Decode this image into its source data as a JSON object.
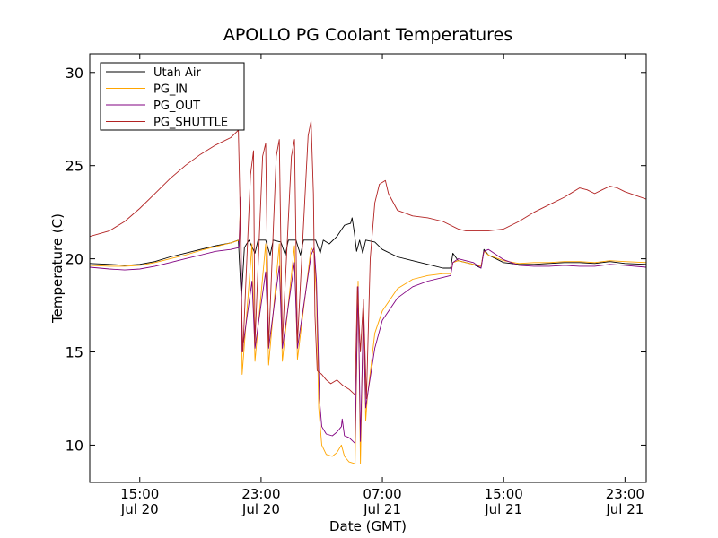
{
  "chart_data": {
    "type": "line",
    "title": "APOLLO PG Coolant Temperatures",
    "xlabel": "Date (GMT)",
    "ylabel": "Temperature (C)",
    "xlim": [
      11.7,
      48.4
    ],
    "ylim": [
      8,
      31
    ],
    "grid": false,
    "legend_position": "top-left",
    "y_ticks": [
      10,
      15,
      20,
      25,
      30
    ],
    "x_ticks": [
      {
        "value": 15,
        "line1": "15:00",
        "line2": "Jul 20"
      },
      {
        "value": 23,
        "line1": "23:00",
        "line2": "Jul 20"
      },
      {
        "value": 31,
        "line1": "07:00",
        "line2": "Jul 21"
      },
      {
        "value": 39,
        "line1": "15:00",
        "line2": "Jul 21"
      },
      {
        "value": 47,
        "line1": "23:00",
        "line2": "Jul 21"
      }
    ],
    "series": [
      {
        "name": "Utah Air",
        "color": "#000000",
        "points": [
          [
            11.7,
            19.75
          ],
          [
            13,
            19.7
          ],
          [
            14,
            19.65
          ],
          [
            15,
            19.7
          ],
          [
            16,
            19.85
          ],
          [
            17,
            20.1
          ],
          [
            18,
            20.3
          ],
          [
            19,
            20.5
          ],
          [
            20,
            20.7
          ],
          [
            21,
            20.85
          ],
          [
            21.5,
            21.0
          ],
          [
            21.7,
            17.8
          ],
          [
            21.9,
            20.6
          ],
          [
            22.2,
            21.0
          ],
          [
            22.6,
            20.3
          ],
          [
            22.8,
            21.0
          ],
          [
            23.3,
            21.0
          ],
          [
            23.6,
            20.2
          ],
          [
            23.8,
            21.0
          ],
          [
            24.3,
            20.9
          ],
          [
            24.6,
            20.2
          ],
          [
            24.8,
            21.0
          ],
          [
            25.3,
            21.0
          ],
          [
            25.6,
            20.2
          ],
          [
            25.8,
            21.0
          ],
          [
            26.6,
            21.0
          ],
          [
            26.9,
            20.3
          ],
          [
            27.1,
            21.0
          ],
          [
            27.5,
            20.8
          ],
          [
            28,
            21.2
          ],
          [
            28.5,
            21.8
          ],
          [
            28.9,
            21.9
          ],
          [
            29.0,
            22.2
          ],
          [
            29.15,
            21.4
          ],
          [
            29.3,
            20.4
          ],
          [
            29.5,
            21.0
          ],
          [
            29.7,
            20.3
          ],
          [
            29.9,
            21.0
          ],
          [
            30.5,
            20.9
          ],
          [
            31,
            20.5
          ],
          [
            32,
            20.1
          ],
          [
            33,
            19.9
          ],
          [
            34,
            19.7
          ],
          [
            35,
            19.5
          ],
          [
            35.5,
            19.5
          ],
          [
            35.65,
            20.3
          ],
          [
            36,
            19.9
          ],
          [
            37,
            19.7
          ],
          [
            37.5,
            19.5
          ],
          [
            37.7,
            20.5
          ],
          [
            38,
            20.2
          ],
          [
            39,
            19.8
          ],
          [
            40,
            19.7
          ],
          [
            41,
            19.7
          ],
          [
            42,
            19.75
          ],
          [
            43,
            19.8
          ],
          [
            44,
            19.8
          ],
          [
            45,
            19.75
          ],
          [
            46,
            19.85
          ],
          [
            47,
            19.75
          ],
          [
            48.4,
            19.7
          ]
        ]
      },
      {
        "name": "PG_IN",
        "color": "#ffa500",
        "points": [
          [
            11.7,
            19.65
          ],
          [
            13,
            19.6
          ],
          [
            14,
            19.6
          ],
          [
            15,
            19.65
          ],
          [
            16,
            19.8
          ],
          [
            17,
            20.0
          ],
          [
            18,
            20.2
          ],
          [
            19,
            20.45
          ],
          [
            20,
            20.65
          ],
          [
            21,
            20.85
          ],
          [
            21.55,
            21.0
          ],
          [
            21.65,
            23.2
          ],
          [
            21.75,
            13.8
          ],
          [
            22.4,
            20.8
          ],
          [
            22.6,
            14.5
          ],
          [
            23.3,
            20.8
          ],
          [
            23.5,
            14.3
          ],
          [
            24.2,
            20.8
          ],
          [
            24.4,
            14.5
          ],
          [
            25.2,
            20.7
          ],
          [
            25.4,
            14.6
          ],
          [
            26.3,
            20.6
          ],
          [
            26.5,
            20.3
          ],
          [
            26.65,
            18
          ],
          [
            26.8,
            12
          ],
          [
            27.0,
            10
          ],
          [
            27.3,
            9.5
          ],
          [
            27.7,
            9.4
          ],
          [
            28.0,
            9.6
          ],
          [
            28.3,
            10.0
          ],
          [
            28.5,
            9.4
          ],
          [
            28.8,
            9.1
          ],
          [
            29.2,
            9.0
          ],
          [
            29.4,
            18.8
          ],
          [
            29.55,
            9.0
          ],
          [
            29.75,
            17.6
          ],
          [
            29.9,
            11.3
          ],
          [
            30,
            12.5
          ],
          [
            30.5,
            16.0
          ],
          [
            31,
            17.2
          ],
          [
            32,
            18.4
          ],
          [
            33,
            18.9
          ],
          [
            34,
            19.1
          ],
          [
            35,
            19.2
          ],
          [
            35.5,
            19.2
          ],
          [
            35.65,
            19.8
          ],
          [
            36,
            19.9
          ],
          [
            37,
            19.7
          ],
          [
            37.5,
            19.6
          ],
          [
            37.7,
            20.4
          ],
          [
            38,
            20.2
          ],
          [
            39,
            19.9
          ],
          [
            40,
            19.75
          ],
          [
            41,
            19.8
          ],
          [
            42,
            19.8
          ],
          [
            43,
            19.85
          ],
          [
            44,
            19.85
          ],
          [
            45,
            19.8
          ],
          [
            46,
            19.9
          ],
          [
            47,
            19.85
          ],
          [
            48.4,
            19.8
          ]
        ]
      },
      {
        "name": "PG_OUT",
        "color": "#800080",
        "points": [
          [
            11.7,
            19.55
          ],
          [
            13,
            19.45
          ],
          [
            14,
            19.4
          ],
          [
            15,
            19.45
          ],
          [
            16,
            19.6
          ],
          [
            17,
            19.8
          ],
          [
            18,
            20.0
          ],
          [
            19,
            20.2
          ],
          [
            20,
            20.4
          ],
          [
            21,
            20.5
          ],
          [
            21.55,
            20.6
          ],
          [
            21.65,
            23.3
          ],
          [
            21.75,
            15.0
          ],
          [
            22.4,
            18.8
          ],
          [
            22.6,
            15.2
          ],
          [
            23.3,
            19.3
          ],
          [
            23.5,
            15.2
          ],
          [
            24.2,
            19.6
          ],
          [
            24.4,
            15.2
          ],
          [
            25.2,
            19.8
          ],
          [
            25.4,
            15.2
          ],
          [
            26.3,
            20.2
          ],
          [
            26.5,
            20.6
          ],
          [
            26.65,
            18.8
          ],
          [
            26.85,
            12.5
          ],
          [
            27.0,
            11.0
          ],
          [
            27.3,
            10.6
          ],
          [
            27.7,
            10.5
          ],
          [
            28.0,
            10.7
          ],
          [
            28.3,
            11.0
          ],
          [
            28.35,
            11.4
          ],
          [
            28.5,
            10.5
          ],
          [
            28.8,
            10.4
          ],
          [
            29.2,
            10.1
          ],
          [
            29.4,
            18.5
          ],
          [
            29.55,
            10.2
          ],
          [
            29.75,
            17.0
          ],
          [
            29.9,
            12.0
          ],
          [
            30,
            12.6
          ],
          [
            30.5,
            15.2
          ],
          [
            31,
            16.7
          ],
          [
            32,
            17.9
          ],
          [
            33,
            18.5
          ],
          [
            34,
            18.8
          ],
          [
            35,
            19.0
          ],
          [
            35.5,
            19.1
          ],
          [
            35.65,
            19.8
          ],
          [
            36,
            20.0
          ],
          [
            37,
            19.8
          ],
          [
            37.5,
            19.5
          ],
          [
            37.7,
            20.4
          ],
          [
            38,
            20.5
          ],
          [
            39,
            19.95
          ],
          [
            40,
            19.65
          ],
          [
            41,
            19.6
          ],
          [
            42,
            19.6
          ],
          [
            43,
            19.65
          ],
          [
            44,
            19.6
          ],
          [
            45,
            19.6
          ],
          [
            46,
            19.7
          ],
          [
            47,
            19.65
          ],
          [
            48.4,
            19.55
          ]
        ]
      },
      {
        "name": "PG_SHUTTLE",
        "color": "#b22222",
        "points": [
          [
            11.7,
            21.2
          ],
          [
            13,
            21.5
          ],
          [
            14,
            22.0
          ],
          [
            15,
            22.7
          ],
          [
            16,
            23.5
          ],
          [
            17,
            24.3
          ],
          [
            18,
            25.0
          ],
          [
            19,
            25.6
          ],
          [
            20,
            26.1
          ],
          [
            21,
            26.5
          ],
          [
            21.5,
            26.9
          ],
          [
            21.6,
            23.4
          ],
          [
            21.7,
            17.8
          ],
          [
            21.8,
            15.0
          ],
          [
            22.3,
            24.5
          ],
          [
            22.5,
            25.8
          ],
          [
            22.6,
            15.5
          ],
          [
            23.1,
            25.5
          ],
          [
            23.3,
            26.2
          ],
          [
            23.5,
            15.3
          ],
          [
            24.0,
            25.5
          ],
          [
            24.2,
            26.4
          ],
          [
            24.4,
            15.5
          ],
          [
            25.0,
            25.5
          ],
          [
            25.2,
            26.4
          ],
          [
            25.4,
            15.5
          ],
          [
            26.1,
            26.6
          ],
          [
            26.3,
            27.4
          ],
          [
            26.45,
            23.5
          ],
          [
            26.55,
            17.0
          ],
          [
            26.7,
            14.0
          ],
          [
            27.0,
            13.8
          ],
          [
            27.3,
            13.5
          ],
          [
            27.6,
            13.3
          ],
          [
            28.0,
            13.5
          ],
          [
            28.4,
            13.2
          ],
          [
            28.8,
            13.0
          ],
          [
            29.2,
            12.7
          ],
          [
            29.35,
            18.5
          ],
          [
            29.55,
            15.0
          ],
          [
            29.75,
            17.8
          ],
          [
            29.95,
            12.5
          ],
          [
            30.2,
            20.0
          ],
          [
            30.5,
            23.0
          ],
          [
            30.8,
            24.0
          ],
          [
            31.2,
            24.2
          ],
          [
            31.4,
            23.5
          ],
          [
            32,
            22.6
          ],
          [
            33,
            22.3
          ],
          [
            34,
            22.2
          ],
          [
            35,
            22.0
          ],
          [
            36,
            21.6
          ],
          [
            36.5,
            21.5
          ],
          [
            37,
            21.5
          ],
          [
            37.5,
            21.5
          ],
          [
            38,
            21.5
          ],
          [
            39,
            21.6
          ],
          [
            40,
            22.0
          ],
          [
            41,
            22.5
          ],
          [
            42,
            22.9
          ],
          [
            43,
            23.3
          ],
          [
            44,
            23.8
          ],
          [
            44.5,
            23.7
          ],
          [
            45,
            23.5
          ],
          [
            45.5,
            23.7
          ],
          [
            46,
            23.9
          ],
          [
            46.5,
            23.8
          ],
          [
            47,
            23.6
          ],
          [
            48.4,
            23.2
          ]
        ]
      }
    ]
  }
}
